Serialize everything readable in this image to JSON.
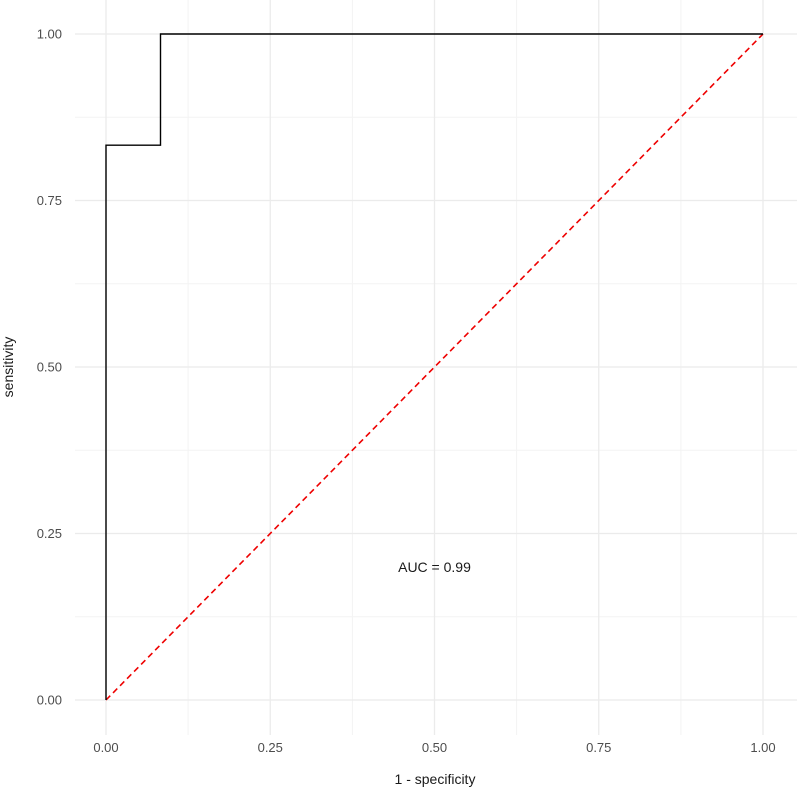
{
  "chart_data": {
    "type": "line",
    "title": "",
    "xlabel": "1 - specificity",
    "ylabel": "sensitivity",
    "xlim": [
      0,
      1
    ],
    "ylim": [
      0,
      1
    ],
    "x_ticks": [
      0,
      0.25,
      0.5,
      0.75,
      1
    ],
    "y_ticks": [
      0,
      0.25,
      0.5,
      0.75,
      1
    ],
    "x_tick_labels": [
      "0.00",
      "0.25",
      "0.50",
      "0.75",
      "1.00"
    ],
    "y_tick_labels": [
      "0.00",
      "0.25",
      "0.50",
      "0.75",
      "1.00"
    ],
    "grid": true,
    "series": [
      {
        "kind": "roc-curve",
        "color": "#000000",
        "style": "solid",
        "x": [
          0,
          0,
          0.083,
          0.083,
          1
        ],
        "y": [
          0,
          0.833,
          0.833,
          1,
          1
        ]
      },
      {
        "kind": "reference-diagonal",
        "color": "#ee0000",
        "style": "dashed",
        "x": [
          0,
          1
        ],
        "y": [
          0,
          1
        ]
      }
    ],
    "annotations": [
      {
        "text": "AUC = 0.99",
        "x": 0.5,
        "y": 0.2
      }
    ]
  }
}
